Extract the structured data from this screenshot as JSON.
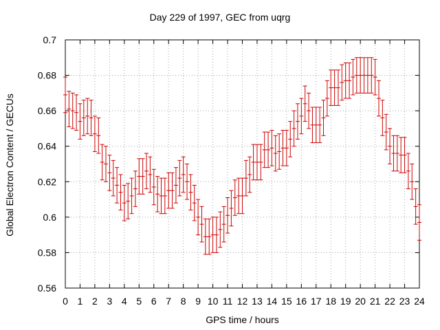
{
  "chart_data": {
    "type": "scatter",
    "style": "errorbars",
    "title": "Day 229 of 1997, GEC from uqrg",
    "xlabel": "GPS time / hours",
    "ylabel": "Global Electron Content / GECUs",
    "xlim": [
      0,
      24
    ],
    "ylim": [
      0.56,
      0.7
    ],
    "xticks": [
      0,
      1,
      2,
      3,
      4,
      5,
      6,
      7,
      8,
      9,
      10,
      11,
      12,
      13,
      14,
      15,
      16,
      17,
      18,
      19,
      20,
      21,
      22,
      23,
      24
    ],
    "xtick_labels": [
      "0",
      "1",
      "2",
      "3",
      "4",
      "5",
      "6",
      "7",
      "8",
      "9",
      "10",
      "11",
      "12",
      "13",
      "14",
      "15",
      "16",
      "17",
      "18",
      "19",
      "20",
      "21",
      "22",
      "23",
      "24"
    ],
    "yticks": [
      0.56,
      0.58,
      0.6,
      0.62,
      0.64,
      0.66,
      0.68,
      0.7
    ],
    "ytick_labels": [
      "0.56",
      "0.58",
      "0.6",
      "0.62",
      "0.64",
      "0.66",
      "0.68",
      "0.7"
    ],
    "grid": true,
    "series_color": "#cc0000",
    "series": [
      {
        "name": "GEC",
        "x": [
          0,
          0.25,
          0.5,
          0.75,
          1,
          1.25,
          1.5,
          1.75,
          2,
          2.25,
          2.5,
          2.75,
          3,
          3.25,
          3.5,
          3.75,
          4,
          4.25,
          4.5,
          4.75,
          5,
          5.25,
          5.5,
          5.75,
          6,
          6.25,
          6.5,
          6.75,
          7,
          7.25,
          7.5,
          7.75,
          8,
          8.25,
          8.5,
          8.75,
          9,
          9.25,
          9.5,
          9.75,
          10,
          10.25,
          10.5,
          10.75,
          11,
          11.25,
          11.5,
          11.75,
          12,
          12.25,
          12.5,
          12.75,
          13,
          13.25,
          13.5,
          13.75,
          14,
          14.25,
          14.5,
          14.75,
          15,
          15.25,
          15.5,
          15.75,
          16,
          16.25,
          16.5,
          16.75,
          17,
          17.25,
          17.5,
          17.75,
          18,
          18.25,
          18.5,
          18.75,
          19,
          19.25,
          19.5,
          19.75,
          20,
          20.25,
          20.5,
          20.75,
          21,
          21.25,
          21.5,
          21.75,
          22,
          22.25,
          22.5,
          22.75,
          23,
          23.25,
          23.5,
          23.75,
          24
        ],
        "y": [
          0.669,
          0.661,
          0.66,
          0.659,
          0.654,
          0.656,
          0.657,
          0.656,
          0.647,
          0.646,
          0.631,
          0.63,
          0.625,
          0.622,
          0.618,
          0.614,
          0.608,
          0.609,
          0.612,
          0.616,
          0.623,
          0.623,
          0.626,
          0.624,
          0.617,
          0.613,
          0.612,
          0.612,
          0.615,
          0.615,
          0.618,
          0.622,
          0.624,
          0.62,
          0.614,
          0.608,
          0.6,
          0.596,
          0.589,
          0.589,
          0.59,
          0.59,
          0.593,
          0.596,
          0.601,
          0.605,
          0.611,
          0.612,
          0.612,
          0.622,
          0.624,
          0.631,
          0.631,
          0.631,
          0.638,
          0.638,
          0.639,
          0.636,
          0.637,
          0.639,
          0.639,
          0.644,
          0.65,
          0.654,
          0.657,
          0.664,
          0.66,
          0.652,
          0.652,
          0.652,
          0.656,
          0.667,
          0.673,
          0.673,
          0.673,
          0.676,
          0.677,
          0.677,
          0.679,
          0.68,
          0.68,
          0.68,
          0.68,
          0.68,
          0.679,
          0.667,
          0.656,
          0.648,
          0.64,
          0.636,
          0.636,
          0.635,
          0.635,
          0.626,
          0.62,
          0.606,
          0.597
        ],
        "yerr": 0.01
      }
    ]
  }
}
